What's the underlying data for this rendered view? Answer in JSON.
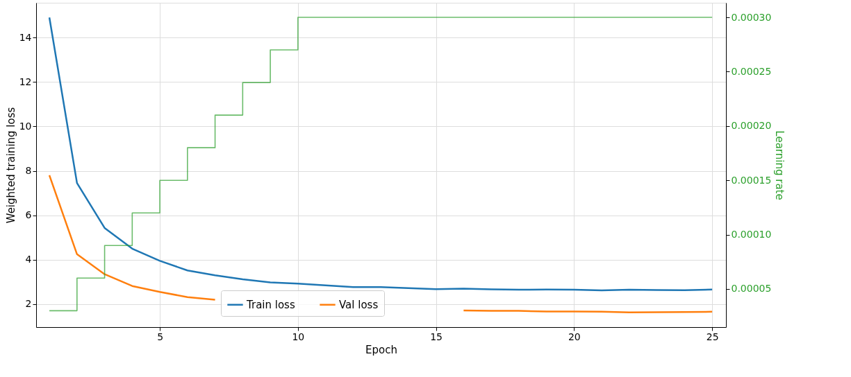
{
  "chart_data": {
    "type": "line",
    "xlabel": "Epoch",
    "ylabel": "Weighted training loss",
    "y2label": "Learning rate",
    "x": [
      1,
      2,
      3,
      4,
      5,
      6,
      7,
      8,
      9,
      10,
      11,
      12,
      13,
      14,
      15,
      16,
      17,
      18,
      19,
      20,
      21,
      22,
      23,
      24,
      25
    ],
    "series": [
      {
        "name": "Train loss",
        "color": "#1f77b4",
        "values": [
          14.9,
          7.45,
          5.43,
          4.5,
          3.95,
          3.52,
          3.3,
          3.12,
          2.98,
          2.93,
          2.85,
          2.77,
          2.77,
          2.72,
          2.68,
          2.7,
          2.67,
          2.65,
          2.66,
          2.65,
          2.62,
          2.65,
          2.64,
          2.63,
          2.66
        ]
      },
      {
        "name": "Val loss",
        "color": "#ff7f0e",
        "values": [
          7.8,
          4.25,
          3.35,
          2.82,
          2.55,
          2.32,
          2.2,
          null,
          null,
          null,
          null,
          null,
          null,
          null,
          null,
          1.72,
          1.7,
          1.7,
          1.67,
          1.67,
          1.66,
          1.63,
          1.64,
          1.65,
          1.66
        ]
      },
      {
        "type": "step",
        "axis": "y2",
        "color": "#2ca02c",
        "values": [
          3e-05,
          6e-05,
          9e-05,
          0.00012,
          0.00015,
          0.00018,
          0.00021,
          0.00024,
          0.00027,
          0.0003,
          0.0003,
          0.0003,
          0.0003,
          0.0003,
          0.0003,
          0.0003,
          0.0003,
          0.0003,
          0.0003,
          0.0003,
          0.0003,
          0.0003,
          0.0003,
          0.0003,
          0.0003
        ]
      }
    ],
    "xlim": [
      0.52,
      25.5
    ],
    "xticks": [
      5,
      10,
      15,
      20,
      25
    ],
    "ylim": [
      0.97,
      15.56
    ],
    "yticks": [
      2,
      4,
      6,
      8,
      10,
      12,
      14
    ],
    "y2lim": [
      1.49e-05,
      0.0003134
    ],
    "y2ticks": [
      {
        "value": 5e-05,
        "label": "0.00005"
      },
      {
        "value": 0.0001,
        "label": "0.00010"
      },
      {
        "value": 0.00015,
        "label": "0.00015"
      },
      {
        "value": 0.0002,
        "label": "0.00020"
      },
      {
        "value": 0.00025,
        "label": "0.00025"
      },
      {
        "value": 0.0003,
        "label": "0.00030"
      }
    ],
    "grid": true,
    "legend": "bottom",
    "marker": "none",
    "line_style": "solid"
  }
}
